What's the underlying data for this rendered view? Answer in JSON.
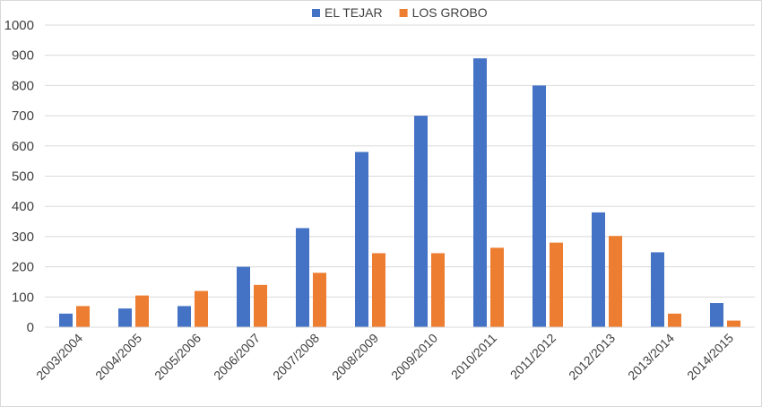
{
  "chart_data": {
    "type": "bar",
    "categories": [
      "2003/2004",
      "2004/2005",
      "2005/2006",
      "2006/2007",
      "2007/2008",
      "2008/2009",
      "2009/2010",
      "2010/2011",
      "2011/2012",
      "2012/2013",
      "2013/2014",
      "2014/2015"
    ],
    "series": [
      {
        "name": "EL TEJAR",
        "color": "#4472C4",
        "values": [
          45,
          62,
          70,
          200,
          328,
          580,
          700,
          890,
          800,
          380,
          248,
          80
        ]
      },
      {
        "name": "LOS GROBO",
        "color": "#ED7D31",
        "values": [
          70,
          105,
          120,
          140,
          180,
          245,
          245,
          263,
          280,
          302,
          45,
          22
        ]
      }
    ],
    "ylim": [
      0,
      1000
    ],
    "yticks": [
      0,
      100,
      200,
      300,
      400,
      500,
      600,
      700,
      800,
      900,
      1000
    ],
    "grid": true,
    "legend_position": "top-center"
  }
}
